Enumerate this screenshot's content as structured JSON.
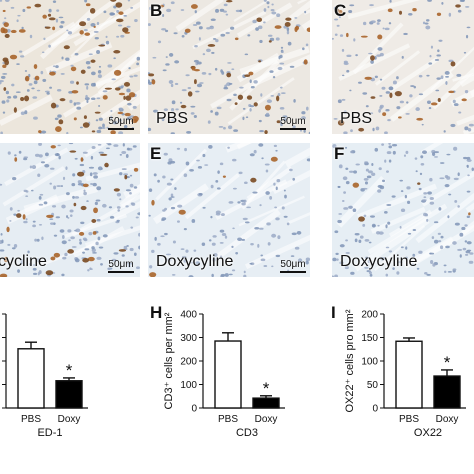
{
  "panels": [
    {
      "letter": "",
      "condition": "",
      "scale": "50μm"
    },
    {
      "letter": "B",
      "condition": "PBS",
      "scale": "50μm"
    },
    {
      "letter": "C",
      "condition": "PBS",
      "scale": ""
    },
    {
      "letter": "",
      "condition": "cycline",
      "scale": "50μm"
    },
    {
      "letter": "E",
      "condition": "Doxycyline",
      "scale": "50μm"
    },
    {
      "letter": "F",
      "condition": "Doxycyline",
      "scale": ""
    }
  ],
  "chart_data": [
    {
      "type": "bar",
      "panel_letter": "",
      "categories": [
        "PBS",
        "Doxy"
      ],
      "values": [
        63,
        29
      ],
      "errors": [
        7,
        3
      ],
      "significance": [
        "",
        "*"
      ],
      "xlabel": "ED-1",
      "ylabel": "",
      "ylim": [
        0,
        100
      ],
      "y_ticks": [
        "",
        "",
        "",
        "",
        ""
      ],
      "bar_colors": [
        "#ffffff",
        "#000000"
      ]
    },
    {
      "type": "bar",
      "panel_letter": "H",
      "categories": [
        "PBS",
        "Doxy"
      ],
      "values": [
        285,
        42
      ],
      "errors": [
        35,
        10
      ],
      "significance": [
        "",
        "*"
      ],
      "xlabel": "CD3",
      "ylabel": "CD3⁺ cells per mm²",
      "ylim": [
        0,
        400
      ],
      "y_ticks": [
        "0",
        "100",
        "200",
        "300",
        "400"
      ],
      "bar_colors": [
        "#ffffff",
        "#000000"
      ]
    },
    {
      "type": "bar",
      "panel_letter": "I",
      "categories": [
        "PBS",
        "Doxy"
      ],
      "values": [
        142,
        68
      ],
      "errors": [
        7,
        13
      ],
      "significance": [
        "",
        "*"
      ],
      "xlabel": "OX22",
      "ylabel": "OX22⁺ cells pro mm²",
      "ylim": [
        0,
        200
      ],
      "y_ticks": [
        "0",
        "50",
        "100",
        "150",
        "200"
      ],
      "bar_colors": [
        "#ffffff",
        "#000000"
      ]
    }
  ]
}
